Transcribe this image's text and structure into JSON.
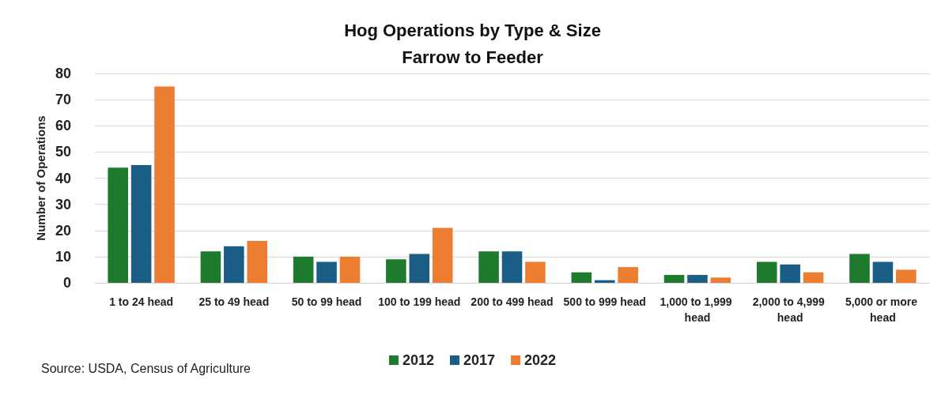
{
  "chart_data": {
    "type": "bar",
    "title": "Hog Operations by Type & Size",
    "subtitle": "Farrow to Feeder",
    "ylabel": "Number of Operations",
    "categories": [
      "1 to 24 head",
      "25 to 49 head",
      "50 to 99 head",
      "100 to 199 head",
      "200 to 499 head",
      "500 to 999 head",
      "1,000 to 1,999 head",
      "2,000 to 4,999 head",
      "5,000 or more head"
    ],
    "series": [
      {
        "name": "2012",
        "color": "#1e7b2e",
        "values": [
          44,
          12,
          10,
          9,
          12,
          4,
          3,
          8,
          11
        ]
      },
      {
        "name": "2017",
        "color": "#1a5e86",
        "values": [
          45,
          14,
          8,
          11,
          12,
          1,
          3,
          7,
          8
        ]
      },
      {
        "name": "2022",
        "color": "#ed7d31",
        "values": [
          75,
          16,
          10,
          21,
          8,
          6,
          2,
          4,
          5
        ]
      }
    ],
    "ylim": [
      0,
      80
    ],
    "yticks": [
      0,
      10,
      20,
      30,
      40,
      50,
      60,
      70,
      80
    ],
    "grid": "y",
    "legend": "bottom",
    "annotations": [
      "Source: USDA, Census of Agriculture"
    ]
  }
}
